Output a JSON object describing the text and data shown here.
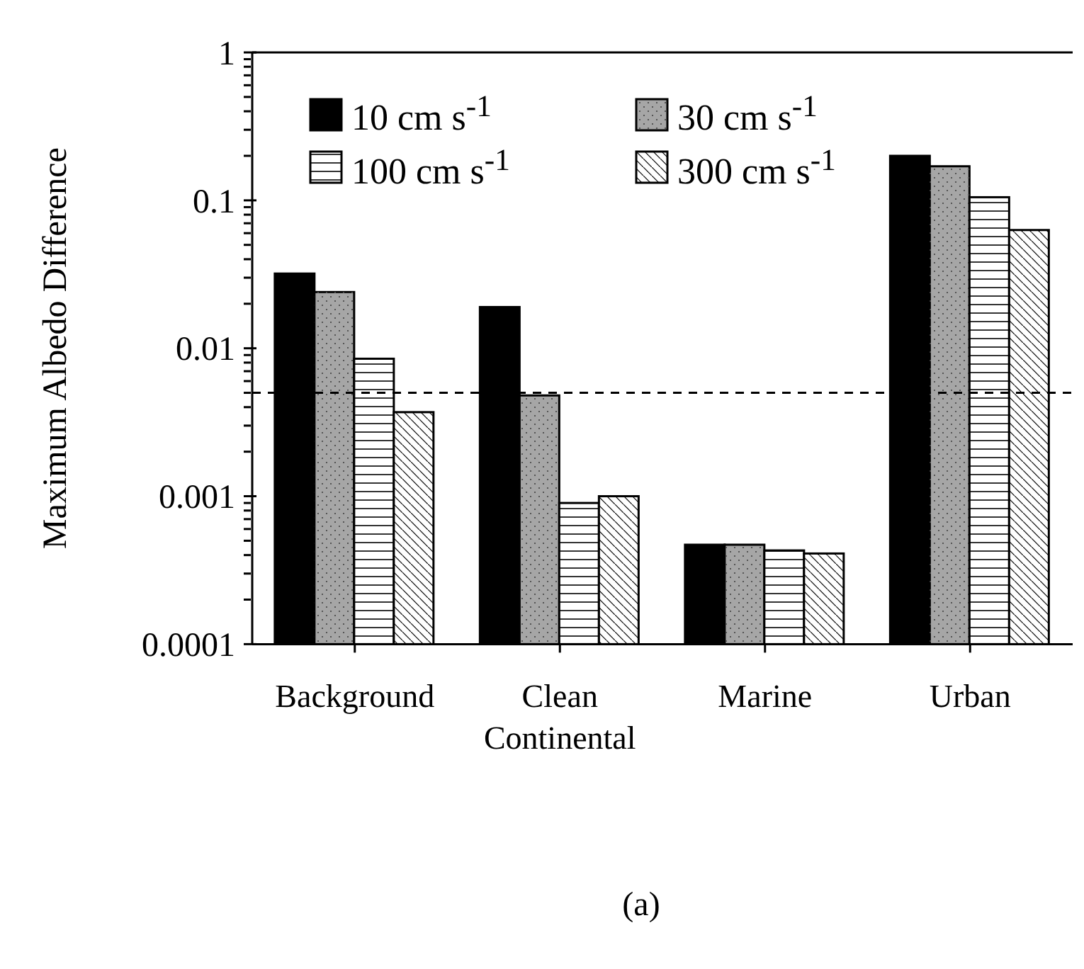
{
  "chart_data": {
    "type": "bar",
    "ylabel": "Maximum Albedo Difference",
    "categories": [
      "Background",
      "Clean Continental",
      "Marine",
      "Urban"
    ],
    "series": [
      {
        "name": "10 cm s$^{-1}$",
        "color": "#000000",
        "values": [
          0.032,
          0.019,
          0.00047,
          0.2
        ]
      },
      {
        "name": "30 cm s$^{-1}$",
        "color": "#a6a6a6",
        "values": [
          0.024,
          0.0048,
          0.00047,
          0.17
        ]
      },
      {
        "name": "100 cm s$^{-1}$",
        "color": "#ffffff",
        "values": [
          0.0085,
          0.0009,
          0.00043,
          0.105
        ]
      },
      {
        "name": "300 cm s$^{-1}$",
        "color": "#fefefe",
        "values": [
          0.0037,
          0.001,
          0.00041,
          0.063
        ]
      }
    ],
    "log": true,
    "ylim": [
      0.0001,
      1
    ],
    "yticks": [
      0.0001,
      {
        "value": 0.0002,
        "label": null
      },
      {
        "value": 0.0003,
        "label": null
      },
      {
        "value": 0.0004,
        "label": null
      },
      {
        "value": 0.0005,
        "label": null
      },
      {
        "value": 0.0006,
        "label": null
      },
      {
        "value": 0.0007,
        "label": null
      },
      {
        "value": 0.0008,
        "label": null
      },
      {
        "value": 0.0009,
        "label": null
      },
      0.001,
      {
        "value": 0.002,
        "label": null
      },
      {
        "value": 0.003,
        "label": null
      },
      {
        "value": 0.004,
        "label": null
      },
      {
        "value": 0.005,
        "label": null
      },
      {
        "value": 0.006,
        "label": null
      },
      {
        "value": 0.007,
        "label": null
      },
      {
        "value": 0.008,
        "label": null
      },
      {
        "value": 0.009,
        "label": null
      },
      0.01,
      {
        "value": 0.02,
        "label": null
      },
      {
        "value": 0.03,
        "label": null
      },
      {
        "value": 0.04,
        "label": null
      },
      {
        "value": 0.05,
        "label": null
      },
      {
        "value": 0.06,
        "label": null
      },
      {
        "value": 0.07,
        "label": null
      },
      {
        "value": 0.08,
        "label": null
      },
      {
        "value": 0.09,
        "label": null
      },
      0.1,
      {
        "value": 0.2,
        "label": null
      },
      {
        "value": 0.3,
        "label": null
      },
      {
        "value": 0.4,
        "label": null
      },
      {
        "value": 0.5,
        "label": null
      },
      {
        "value": 0.6,
        "label": null
      },
      {
        "value": 0.7,
        "label": null
      },
      {
        "value": 0.8,
        "label": null
      },
      {
        "value": 0.9,
        "label": null
      },
      1
    ],
    "ref_lines": [
      {
        "axis": "y",
        "value": 0.005,
        "line_style": "dashed",
        "color": "#000000"
      }
    ],
    "grid": false,
    "legend": "top left",
    "annotations": [
      "(a)"
    ]
  }
}
